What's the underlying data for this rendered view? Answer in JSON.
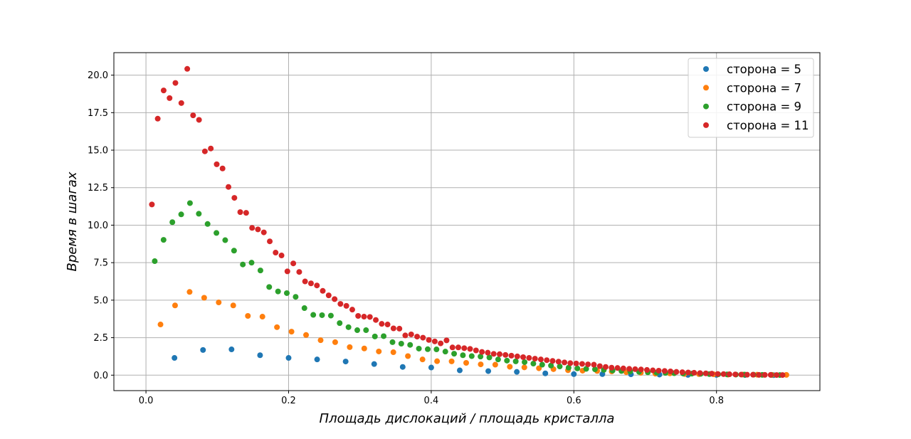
{
  "chart_data": {
    "type": "scatter",
    "title": "",
    "xlabel": "Площадь дислокаций / площадь кристалла",
    "ylabel": "Время в шагах",
    "xlim": [
      -0.045,
      0.945
    ],
    "ylim": [
      -1.03,
      21.5
    ],
    "xticks": [
      0.0,
      0.2,
      0.4,
      0.6,
      0.8
    ],
    "xtick_labels": [
      "0.0",
      "0.2",
      "0.4",
      "0.6",
      "0.8"
    ],
    "yticks": [
      0.0,
      2.5,
      5.0,
      7.5,
      10.0,
      12.5,
      15.0,
      17.5,
      20.0
    ],
    "ytick_labels": [
      "0.0",
      "2.5",
      "5.0",
      "7.5",
      "10.0",
      "12.5",
      "15.0",
      "17.5",
      "20.0"
    ],
    "grid": true,
    "legend_position": "top-right",
    "series": [
      {
        "name": "сторона = 5",
        "color": "#1f77b4",
        "x": [
          0.04,
          0.08,
          0.12,
          0.16,
          0.2,
          0.24,
          0.28,
          0.32,
          0.36,
          0.4,
          0.44,
          0.48,
          0.52,
          0.56,
          0.6,
          0.64,
          0.68,
          0.72,
          0.76,
          0.8,
          0.84,
          0.88
        ],
        "y": [
          1.15,
          1.68,
          1.72,
          1.33,
          1.15,
          1.05,
          0.91,
          0.74,
          0.55,
          0.51,
          0.32,
          0.27,
          0.22,
          0.12,
          0.07,
          0.07,
          0.06,
          0.04,
          0.02,
          0.02,
          0.01,
          0.0
        ]
      },
      {
        "name": "сторона = 7",
        "color": "#ff7f0e",
        "x": [
          0.0204,
          0.0408,
          0.0612,
          0.0816,
          0.102,
          0.1224,
          0.1429,
          0.1633,
          0.1837,
          0.2041,
          0.2245,
          0.2449,
          0.2653,
          0.2857,
          0.3061,
          0.3265,
          0.3469,
          0.3673,
          0.3878,
          0.4082,
          0.4286,
          0.449,
          0.4694,
          0.4898,
          0.5102,
          0.5306,
          0.551,
          0.5714,
          0.5918,
          0.6122,
          0.6327,
          0.6531,
          0.6735,
          0.6939,
          0.7143,
          0.7347,
          0.7551,
          0.7755,
          0.7959,
          0.8163,
          0.8367,
          0.8571,
          0.8776,
          0.898
        ],
        "y": [
          3.38,
          4.65,
          5.55,
          5.16,
          4.85,
          4.65,
          3.95,
          3.9,
          3.2,
          2.9,
          2.68,
          2.33,
          2.2,
          1.87,
          1.78,
          1.58,
          1.53,
          1.27,
          1.05,
          0.93,
          0.92,
          0.82,
          0.72,
          0.7,
          0.56,
          0.52,
          0.46,
          0.4,
          0.33,
          0.3,
          0.28,
          0.25,
          0.2,
          0.16,
          0.1,
          0.12,
          0.08,
          0.07,
          0.06,
          0.04,
          0.04,
          0.03,
          0.02,
          0.02
        ]
      },
      {
        "name": "сторона = 9",
        "color": "#2ca02c",
        "x": [
          0.0123,
          0.0247,
          0.037,
          0.0494,
          0.0617,
          0.0741,
          0.0864,
          0.0988,
          0.1111,
          0.1235,
          0.1358,
          0.1481,
          0.1605,
          0.1728,
          0.1852,
          0.1975,
          0.2099,
          0.2222,
          0.2346,
          0.2469,
          0.2593,
          0.2716,
          0.284,
          0.2963,
          0.3086,
          0.321,
          0.3333,
          0.3457,
          0.358,
          0.3704,
          0.3827,
          0.3951,
          0.4074,
          0.4198,
          0.4321,
          0.4444,
          0.4568,
          0.4691,
          0.4815,
          0.4938,
          0.5062,
          0.5185,
          0.5309,
          0.5432,
          0.5556,
          0.5679,
          0.5802,
          0.5926,
          0.6049,
          0.6173,
          0.6296,
          0.642,
          0.6543,
          0.6667,
          0.679,
          0.6914,
          0.7037,
          0.716,
          0.7284,
          0.7407,
          0.7531,
          0.7654,
          0.7778,
          0.7901,
          0.8025,
          0.8148,
          0.8272,
          0.8395,
          0.8519,
          0.8642,
          0.8765,
          0.8889
        ],
        "y": [
          7.6,
          9.02,
          10.2,
          10.72,
          11.47,
          10.76,
          10.08,
          9.48,
          9.0,
          8.3,
          7.38,
          7.5,
          6.98,
          5.88,
          5.58,
          5.47,
          5.22,
          4.47,
          4.02,
          4.0,
          3.97,
          3.47,
          3.2,
          3.0,
          3.0,
          2.58,
          2.6,
          2.2,
          2.1,
          2.02,
          1.77,
          1.73,
          1.72,
          1.57,
          1.43,
          1.33,
          1.27,
          1.24,
          1.18,
          1.05,
          0.97,
          0.92,
          0.87,
          0.77,
          0.7,
          0.64,
          0.58,
          0.5,
          0.45,
          0.42,
          0.39,
          0.35,
          0.31,
          0.28,
          0.25,
          0.22,
          0.19,
          0.17,
          0.15,
          0.13,
          0.11,
          0.1,
          0.09,
          0.07,
          0.06,
          0.05,
          0.04,
          0.04,
          0.03,
          0.02,
          0.02,
          0.01
        ]
      },
      {
        "name": "сторона = 11",
        "color": "#d62728",
        "x": [
          0.0083,
          0.0165,
          0.0248,
          0.0331,
          0.0413,
          0.0496,
          0.0579,
          0.0661,
          0.0744,
          0.0826,
          0.0909,
          0.0992,
          0.1074,
          0.1157,
          0.124,
          0.1322,
          0.1405,
          0.1488,
          0.157,
          0.1653,
          0.1736,
          0.1818,
          0.1901,
          0.1983,
          0.2066,
          0.2149,
          0.2231,
          0.2314,
          0.2397,
          0.2479,
          0.2562,
          0.2645,
          0.2727,
          0.281,
          0.2893,
          0.2975,
          0.3058,
          0.314,
          0.3223,
          0.3306,
          0.3388,
          0.3471,
          0.3554,
          0.3636,
          0.3719,
          0.3802,
          0.3884,
          0.3967,
          0.405,
          0.4132,
          0.4215,
          0.4298,
          0.438,
          0.4463,
          0.4545,
          0.4628,
          0.4711,
          0.4793,
          0.4876,
          0.4959,
          0.5041,
          0.5124,
          0.5207,
          0.5289,
          0.5372,
          0.5455,
          0.5537,
          0.562,
          0.5702,
          0.5785,
          0.5868,
          0.595,
          0.6033,
          0.6116,
          0.6198,
          0.6281,
          0.6364,
          0.6446,
          0.6529,
          0.6612,
          0.6694,
          0.6777,
          0.686,
          0.6942,
          0.7025,
          0.7107,
          0.719,
          0.7273,
          0.7355,
          0.7438,
          0.7521,
          0.7603,
          0.7686,
          0.7769,
          0.7851,
          0.7934,
          0.8017,
          0.8099,
          0.8182,
          0.8264,
          0.8347,
          0.843,
          0.8512,
          0.8595,
          0.8678,
          0.876,
          0.8843,
          0.8926
        ],
        "y": [
          11.38,
          17.1,
          18.98,
          18.47,
          19.48,
          18.14,
          20.42,
          17.32,
          17.02,
          14.92,
          15.11,
          14.06,
          13.78,
          12.55,
          11.82,
          10.87,
          10.82,
          9.82,
          9.72,
          9.52,
          8.92,
          8.17,
          7.98,
          6.92,
          7.45,
          6.88,
          6.25,
          6.12,
          5.98,
          5.62,
          5.32,
          5.07,
          4.75,
          4.62,
          4.37,
          3.95,
          3.9,
          3.88,
          3.68,
          3.42,
          3.38,
          3.12,
          3.1,
          2.65,
          2.72,
          2.57,
          2.5,
          2.35,
          2.25,
          2.12,
          2.32,
          1.85,
          1.85,
          1.8,
          1.75,
          1.65,
          1.55,
          1.5,
          1.42,
          1.4,
          1.35,
          1.3,
          1.25,
          1.2,
          1.15,
          1.1,
          1.05,
          1.0,
          0.95,
          0.9,
          0.85,
          0.8,
          0.78,
          0.75,
          0.72,
          0.7,
          0.6,
          0.55,
          0.5,
          0.48,
          0.45,
          0.42,
          0.4,
          0.38,
          0.35,
          0.32,
          0.3,
          0.28,
          0.25,
          0.22,
          0.2,
          0.18,
          0.16,
          0.14,
          0.12,
          0.1,
          0.08,
          0.07,
          0.06,
          0.05,
          0.04,
          0.03,
          0.03,
          0.02,
          0.02,
          0.02,
          0.01,
          0.01
        ]
      }
    ]
  }
}
